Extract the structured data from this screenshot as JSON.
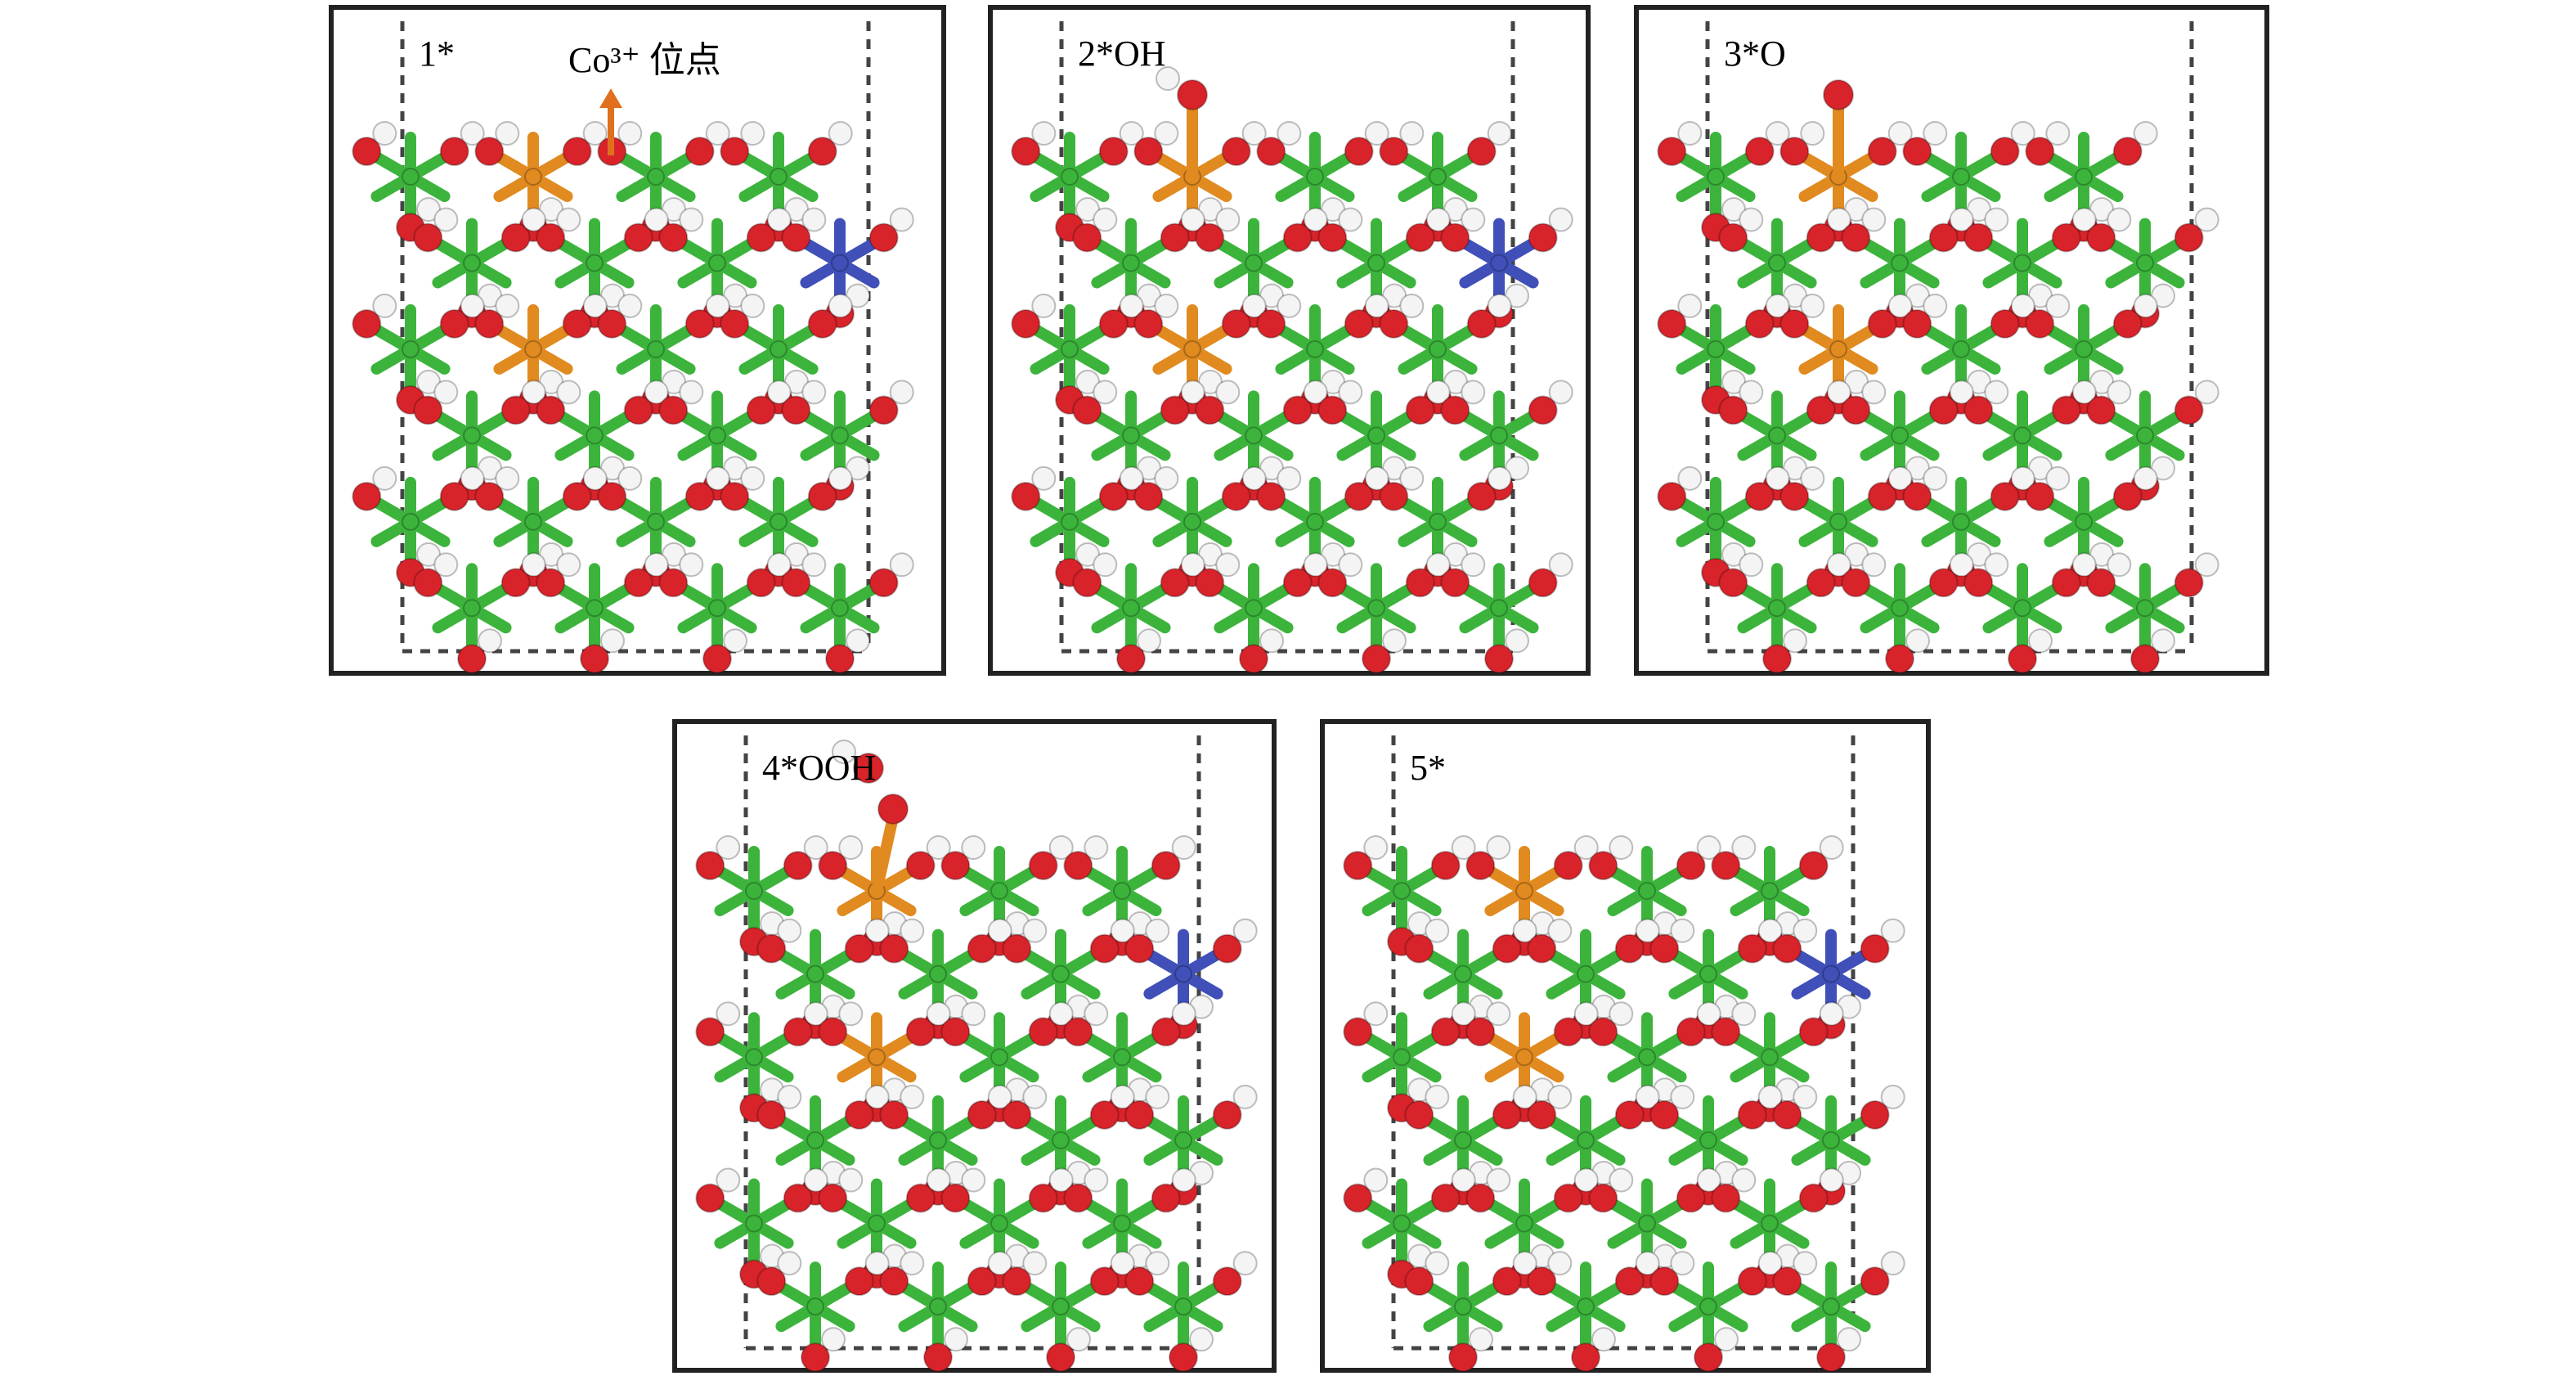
{
  "panels": [
    {
      "label": "1*",
      "annotation": "Co³⁺ 位点"
    },
    {
      "label": "2*OH"
    },
    {
      "label": "3*O"
    },
    {
      "label": "4*OOH"
    },
    {
      "label": "5*"
    }
  ]
}
